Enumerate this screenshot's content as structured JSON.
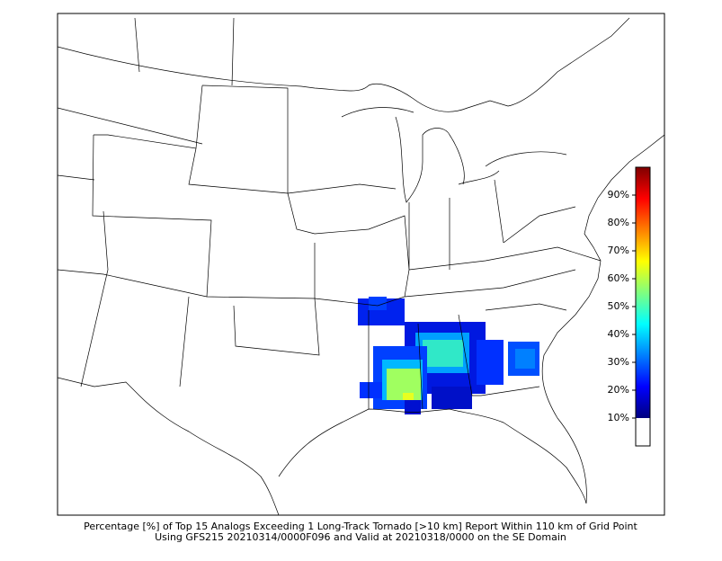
{
  "caption": {
    "line1": "Percentage [%] of Top 15 Analogs Exceeding 1 Long-Track Tornado [>10 km] Report Within 110 km of Grid Point",
    "line2": "Using GFS215 20210314/0000F096 and Valid at 20210318/0000 on the SE Domain"
  },
  "colorbar": {
    "clim": [
      0,
      100
    ],
    "colormap": "jet",
    "under_color": "#ffffff",
    "under_limit": 10,
    "ticks": [
      {
        "value": 10,
        "label": "10%"
      },
      {
        "value": 20,
        "label": "20%"
      },
      {
        "value": 30,
        "label": "30%"
      },
      {
        "value": 40,
        "label": "40%"
      },
      {
        "value": 50,
        "label": "50%"
      },
      {
        "value": 60,
        "label": "60%"
      },
      {
        "value": 70,
        "label": "70%"
      },
      {
        "value": 80,
        "label": "80%"
      },
      {
        "value": 90,
        "label": "90%"
      }
    ]
  }
}
